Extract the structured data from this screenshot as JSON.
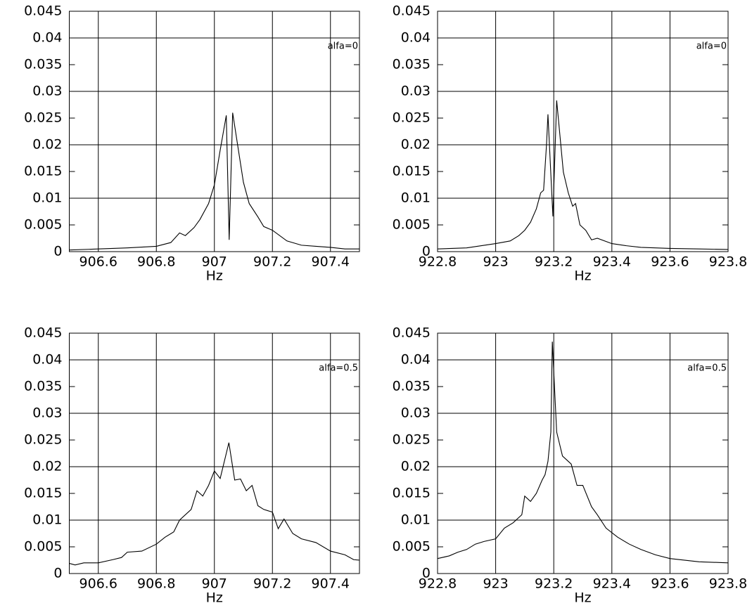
{
  "chart_data": [
    {
      "type": "line",
      "annotation": "alfa=0",
      "xlabel": "Hz",
      "color": "#000000",
      "grid": true,
      "xlim": [
        906.5,
        907.5
      ],
      "xticks": [
        906.6,
        906.8,
        907,
        907.2,
        907.4
      ],
      "ylim": [
        0,
        0.045
      ],
      "yticks": [
        0,
        0.005,
        0.01,
        0.015,
        0.02,
        0.025,
        0.03,
        0.035,
        0.04,
        0.045
      ],
      "x": [
        906.5,
        906.6,
        906.7,
        906.8,
        906.85,
        906.88,
        906.9,
        906.93,
        906.95,
        906.98,
        907.0,
        907.02,
        907.041,
        907.051,
        907.063,
        907.08,
        907.1,
        907.12,
        907.15,
        907.17,
        907.2,
        907.25,
        907.3,
        907.35,
        907.4,
        907.45,
        907.5
      ],
      "values": [
        0.0003,
        0.0005,
        0.0007,
        0.001,
        0.0017,
        0.0035,
        0.003,
        0.0045,
        0.006,
        0.009,
        0.0125,
        0.019,
        0.0255,
        0.0022,
        0.026,
        0.02,
        0.013,
        0.009,
        0.0065,
        0.0047,
        0.004,
        0.002,
        0.0012,
        0.001,
        0.0008,
        0.0005,
        0.0005
      ]
    },
    {
      "type": "line",
      "annotation": "alfa=0",
      "xlabel": "Hz",
      "color": "#000000",
      "grid": true,
      "xlim": [
        922.8,
        923.8
      ],
      "xticks": [
        922.8,
        923,
        923.2,
        923.4,
        923.6,
        923.8
      ],
      "ylim": [
        0,
        0.045
      ],
      "yticks": [
        0,
        0.005,
        0.01,
        0.015,
        0.02,
        0.025,
        0.03,
        0.035,
        0.04,
        0.045
      ],
      "x": [
        922.8,
        922.9,
        923.0,
        923.05,
        923.08,
        923.1,
        923.12,
        923.14,
        923.155,
        923.165,
        923.175,
        923.18,
        923.197,
        923.21,
        923.233,
        923.25,
        923.265,
        923.275,
        923.29,
        923.31,
        923.33,
        923.35,
        923.4,
        923.45,
        923.5,
        923.6,
        923.7,
        923.8
      ],
      "values": [
        0.0005,
        0.0007,
        0.0015,
        0.002,
        0.003,
        0.004,
        0.0055,
        0.008,
        0.011,
        0.0115,
        0.02,
        0.0257,
        0.0066,
        0.0283,
        0.0149,
        0.011,
        0.0085,
        0.009,
        0.005,
        0.004,
        0.0022,
        0.0025,
        0.0015,
        0.0011,
        0.0008,
        0.0006,
        0.0005,
        0.0004
      ]
    },
    {
      "type": "line",
      "annotation": "alfa=0.5",
      "xlabel": "Hz",
      "color": "#000000",
      "grid": true,
      "xlim": [
        906.5,
        907.5
      ],
      "xticks": [
        906.6,
        906.8,
        907,
        907.2,
        907.4
      ],
      "ylim": [
        0,
        0.045
      ],
      "yticks": [
        0,
        0.005,
        0.01,
        0.015,
        0.02,
        0.025,
        0.03,
        0.035,
        0.04,
        0.045
      ],
      "x": [
        906.5,
        906.52,
        906.55,
        906.6,
        906.65,
        906.68,
        906.7,
        906.75,
        906.8,
        906.83,
        906.86,
        906.88,
        906.92,
        906.94,
        906.96,
        906.98,
        907.0,
        907.02,
        907.05,
        907.07,
        907.09,
        907.11,
        907.13,
        907.15,
        907.17,
        907.2,
        907.22,
        907.24,
        907.27,
        907.3,
        907.35,
        907.4,
        907.45,
        907.48,
        907.5
      ],
      "values": [
        0.0019,
        0.0016,
        0.002,
        0.002,
        0.0026,
        0.003,
        0.004,
        0.0042,
        0.0055,
        0.0068,
        0.0078,
        0.01,
        0.012,
        0.0155,
        0.0145,
        0.0165,
        0.0192,
        0.0178,
        0.0245,
        0.0175,
        0.0177,
        0.0155,
        0.0165,
        0.0127,
        0.012,
        0.0115,
        0.0084,
        0.0102,
        0.0075,
        0.0065,
        0.0058,
        0.0042,
        0.0035,
        0.0026,
        0.0025
      ]
    },
    {
      "type": "line",
      "annotation": "alfa=0.5",
      "xlabel": "Hz",
      "color": "#000000",
      "grid": true,
      "xlim": [
        922.8,
        923.8
      ],
      "xticks": [
        922.8,
        923,
        923.2,
        923.4,
        923.6,
        923.8
      ],
      "ylim": [
        0,
        0.045
      ],
      "yticks": [
        0,
        0.005,
        0.01,
        0.015,
        0.02,
        0.025,
        0.03,
        0.035,
        0.04,
        0.045
      ],
      "x": [
        922.8,
        922.84,
        922.87,
        922.9,
        922.93,
        922.96,
        923.0,
        923.03,
        923.06,
        923.09,
        923.1,
        923.12,
        923.14,
        923.16,
        923.17,
        923.18,
        923.19,
        923.195,
        923.21,
        923.23,
        923.26,
        923.28,
        923.3,
        923.33,
        923.35,
        923.38,
        923.42,
        923.46,
        923.5,
        923.55,
        923.6,
        923.7,
        923.8
      ],
      "values": [
        0.0028,
        0.0033,
        0.004,
        0.0045,
        0.0055,
        0.006,
        0.0065,
        0.0085,
        0.0095,
        0.011,
        0.0145,
        0.0135,
        0.015,
        0.0175,
        0.0185,
        0.021,
        0.0265,
        0.0434,
        0.0265,
        0.022,
        0.0205,
        0.0165,
        0.0165,
        0.0125,
        0.011,
        0.0085,
        0.0068,
        0.0055,
        0.0045,
        0.0035,
        0.0028,
        0.0022,
        0.002
      ]
    }
  ]
}
